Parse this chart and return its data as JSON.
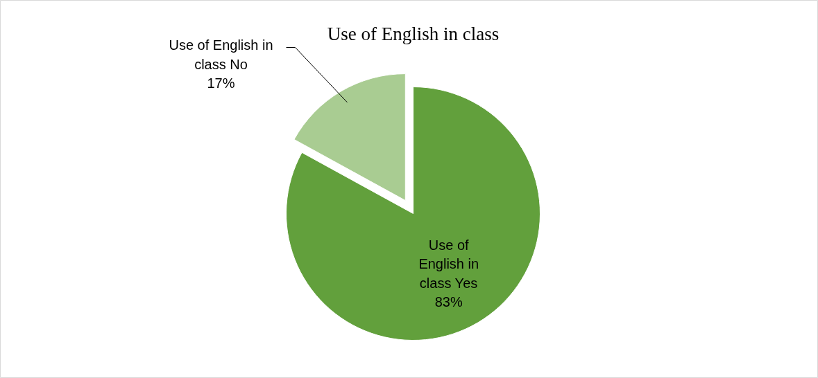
{
  "chart_data": {
    "type": "pie",
    "title": "Use of English in class",
    "categories": [
      "Use of English in class Yes",
      "Use of English in class No"
    ],
    "values": [
      83,
      17
    ],
    "value_labels": [
      "83%",
      "17%"
    ],
    "colors": [
      "#62a03c",
      "#a9cc92"
    ]
  }
}
